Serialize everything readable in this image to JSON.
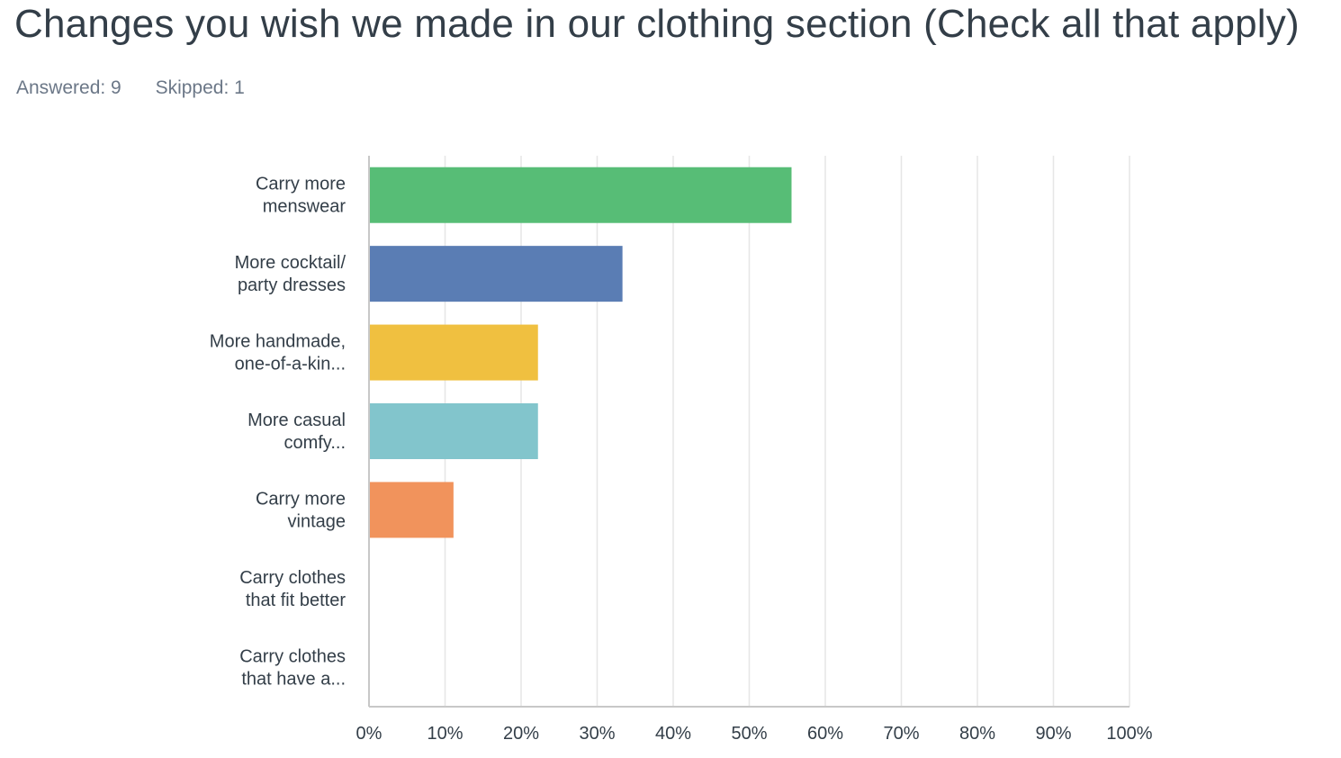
{
  "question": {
    "title": "Changes you wish we made in our clothing section (Check all that apply)",
    "answered": "Answered: 9",
    "skipped": "Skipped: 1"
  },
  "chart_data": {
    "type": "bar",
    "orientation": "horizontal",
    "categories": [
      [
        "Carry more",
        "menswear"
      ],
      [
        "More cocktail/",
        "party dresses"
      ],
      [
        "More handmade,",
        "one-of-a-kin..."
      ],
      [
        "More casual",
        "comfy..."
      ],
      [
        "Carry more",
        "vintage"
      ],
      [
        "Carry clothes",
        "that fit better"
      ],
      [
        "Carry clothes",
        "that have a..."
      ]
    ],
    "values": [
      55.56,
      33.33,
      22.22,
      22.22,
      11.11,
      0,
      0
    ],
    "colors": [
      "#57bd76",
      "#5a7db4",
      "#f0c040",
      "#82c5cc",
      "#f1935c",
      "#a9a9a9",
      "#a9a9a9"
    ],
    "xlim": [
      0,
      100
    ],
    "xticks": [
      "0%",
      "10%",
      "20%",
      "30%",
      "40%",
      "50%",
      "60%",
      "70%",
      "80%",
      "90%",
      "100%"
    ],
    "grid": true
  }
}
